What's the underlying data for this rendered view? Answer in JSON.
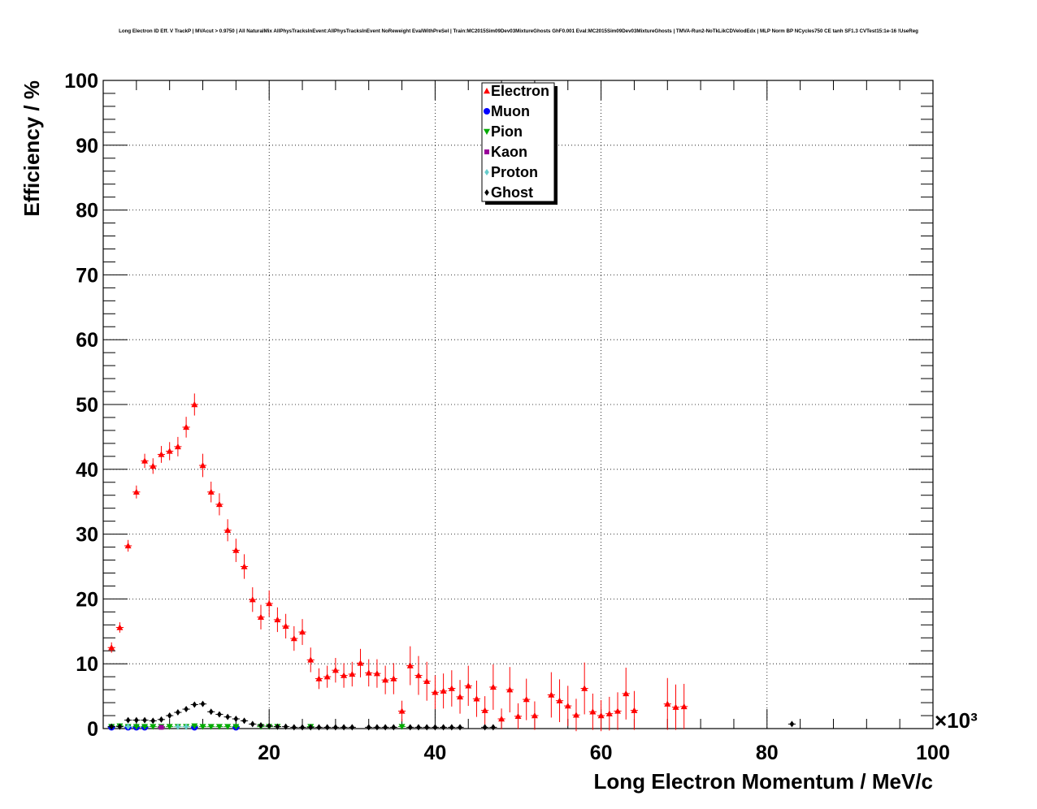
{
  "chart_data": {
    "type": "scatter",
    "title": "Long Electron ID Eff. V TrackP | MVAcut > 0.9750 | All NaturalMix AllPhysTracksInEvent:AllPhysTracksInEvent NoReweight EvalWithPreSel | Train:MC2015Sim09Dev03MixtureGhosts GhF0.001 Eval:MC2015Sim09Dev03MixtureGhosts | TMVA-Run2-NoTkLikCDVelodEdx | MLP Norm BP NCycles750 CE tanh SF1.3 CVTest15:1e-16 !UseReg",
    "xlabel": "Long Electron Momentum / MeV/c",
    "ylabel": "Efficiency / %",
    "x_multiplier": "×10³",
    "xlim": [
      0,
      100
    ],
    "ylim": [
      0,
      100
    ],
    "x_ticks": [
      "20",
      "40",
      "60",
      "80",
      "100"
    ],
    "y_ticks": [
      "0",
      "10",
      "20",
      "30",
      "40",
      "50",
      "60",
      "70",
      "80",
      "90",
      "100"
    ],
    "grid": true,
    "legend_position": "top-center",
    "series": [
      {
        "name": "Electron",
        "color": "#ff0000",
        "marker": "triangle-up",
        "x": [
          1,
          2,
          3,
          4,
          5,
          6,
          7,
          8,
          9,
          10,
          11,
          12,
          13,
          14,
          15,
          16,
          17,
          18,
          19,
          20,
          21,
          22,
          23,
          24,
          25,
          26,
          27,
          28,
          29,
          30,
          31,
          32,
          33,
          34,
          35,
          36,
          37,
          38,
          39,
          40,
          41,
          42,
          43,
          44,
          45,
          46,
          47,
          48,
          49,
          50,
          51,
          52,
          54,
          55,
          56,
          57,
          58,
          59,
          60,
          61,
          62,
          63,
          64,
          68,
          69,
          70
        ],
        "y": [
          12.5,
          15.6,
          28.2,
          36.5,
          41.3,
          40.5,
          42.3,
          42.8,
          43.5,
          46.5,
          50.0,
          40.6,
          36.5,
          34.6,
          30.6,
          27.5,
          25.0,
          19.9,
          17.2,
          19.3,
          16.8,
          15.8,
          13.9,
          14.9,
          10.6,
          7.7,
          8.0,
          9.0,
          8.2,
          8.4,
          10.1,
          8.6,
          8.5,
          7.5,
          7.7,
          2.7,
          9.7,
          8.2,
          7.3,
          5.6,
          5.8,
          6.2,
          4.9,
          6.6,
          4.6,
          2.8,
          6.4,
          1.5,
          6.0,
          1.9,
          4.5,
          2.0,
          5.2,
          4.3,
          3.5,
          2.1,
          6.2,
          2.6,
          2.0,
          2.3,
          2.7,
          5.4,
          2.8,
          3.8,
          3.3,
          3.4
        ],
        "yerr": [
          0.8,
          0.8,
          0.9,
          1.0,
          1.1,
          1.2,
          1.3,
          1.4,
          1.5,
          1.6,
          1.7,
          1.8,
          1.6,
          1.7,
          1.7,
          1.8,
          1.9,
          1.9,
          1.9,
          2.0,
          1.9,
          1.9,
          1.9,
          2.0,
          1.9,
          1.6,
          1.7,
          1.9,
          1.9,
          1.9,
          2.2,
          2.1,
          2.2,
          2.2,
          2.4,
          1.6,
          3.0,
          3.0,
          3.0,
          2.6,
          2.7,
          2.8,
          2.6,
          3.1,
          2.8,
          2.2,
          3.5,
          1.6,
          3.5,
          2.0,
          3.2,
          2.2,
          3.5,
          3.3,
          3.1,
          2.5,
          4.0,
          2.8,
          2.4,
          2.6,
          2.9,
          4.0,
          3.0,
          4.0,
          3.5,
          3.5
        ]
      },
      {
        "name": "Muon",
        "color": "#0000ff",
        "marker": "circle",
        "x": [
          1,
          3,
          4,
          5,
          11,
          16
        ],
        "y": [
          0.2,
          0.2,
          0.2,
          0.2,
          0.2,
          0.2
        ]
      },
      {
        "name": "Pion",
        "color": "#00aa00",
        "marker": "triangle-down",
        "x": [
          1,
          2,
          3,
          4,
          5,
          6,
          7,
          8,
          9,
          10,
          11,
          12,
          13,
          14,
          15,
          16,
          19,
          20,
          21,
          25,
          36
        ],
        "y": [
          0.3,
          0.4,
          0.3,
          0.3,
          0.3,
          0.3,
          0.3,
          0.3,
          0.3,
          0.3,
          0.4,
          0.3,
          0.3,
          0.3,
          0.3,
          0.3,
          0.3,
          0.3,
          0.3,
          0.3,
          0.3
        ]
      },
      {
        "name": "Kaon",
        "color": "#990099",
        "marker": "square",
        "x": [
          7
        ],
        "y": [
          0.2
        ]
      },
      {
        "name": "Proton",
        "color": "#66cccc",
        "marker": "diamond",
        "x": [
          2,
          3,
          9,
          10
        ],
        "y": [
          0.3,
          0.3,
          0.3,
          0.3
        ]
      },
      {
        "name": "Ghost",
        "color": "#000000",
        "marker": "diamond",
        "x": [
          1,
          2,
          3,
          4,
          5,
          6,
          7,
          8,
          9,
          10,
          11,
          12,
          13,
          14,
          15,
          16,
          17,
          18,
          19,
          20,
          21,
          22,
          23,
          24,
          25,
          26,
          27,
          28,
          29,
          30,
          32,
          33,
          34,
          35,
          37,
          38,
          39,
          40,
          41,
          42,
          43,
          46,
          47,
          83
        ],
        "y": [
          0.3,
          0.3,
          1.3,
          1.3,
          1.3,
          1.2,
          1.4,
          2.0,
          2.5,
          3.0,
          3.7,
          3.8,
          2.6,
          2.2,
          1.8,
          1.5,
          1.2,
          0.7,
          0.5,
          0.4,
          0.3,
          0.3,
          0.2,
          0.2,
          0.2,
          0.2,
          0.2,
          0.2,
          0.2,
          0.2,
          0.2,
          0.2,
          0.2,
          0.2,
          0.2,
          0.2,
          0.2,
          0.2,
          0.2,
          0.2,
          0.2,
          0.2,
          0.2,
          0.7
        ]
      }
    ]
  }
}
